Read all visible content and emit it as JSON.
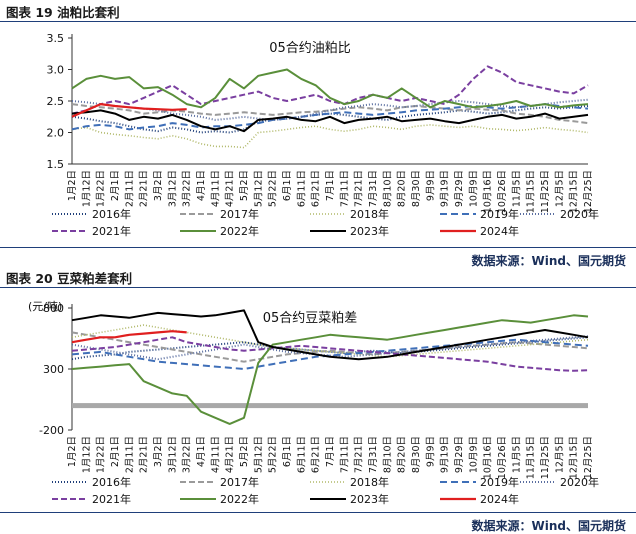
{
  "figures": [
    {
      "label": "图表 19  油粕比套利",
      "source": "数据来源：Wind、国元期货",
      "chart_data": {
        "type": "line",
        "title": "05合约油粕比",
        "ylabel": "",
        "xlabel": "",
        "ylim": [
          1.5,
          3.5
        ],
        "yticks": [
          "1.5",
          "2.0",
          "2.5",
          "3.0",
          "3.5"
        ],
        "categories": [
          "1月2日",
          "1月12日",
          "1月22日",
          "2月1日",
          "2月11日",
          "2月21日",
          "3月2日",
          "3月12日",
          "3月22日",
          "4月1日",
          "4月11日",
          "4月21日",
          "5月2日",
          "5月12日",
          "5月22日",
          "6月1日",
          "6月11日",
          "6月21日",
          "7月1日",
          "7月11日",
          "7月21日",
          "7月31日",
          "8月10日",
          "8月20日",
          "8月30日",
          "9月9日",
          "9月19日",
          "9月29日",
          "10月9日",
          "10月16日",
          "10月26日",
          "11月5日",
          "11月15日",
          "11月25日",
          "12月5日",
          "12月15日",
          "12月25日"
        ],
        "legend_position": "bottom",
        "series": [
          {
            "name": "2016年",
            "color": "#1f3f7a",
            "dash": "1,2",
            "width": 2,
            "values": [
              2.25,
              2.22,
              2.18,
              2.15,
              2.1,
              2.05,
              2.02,
              2.08,
              2.05,
              2.0,
              2.02,
              2.0,
              2.05,
              2.18,
              2.2,
              2.22,
              2.25,
              2.28,
              2.3,
              2.28,
              2.25,
              2.22,
              2.2,
              2.25,
              2.28,
              2.3,
              2.32,
              2.35,
              2.33,
              2.3,
              2.32,
              2.35,
              2.38,
              2.4,
              2.38,
              2.4,
              2.42
            ]
          },
          {
            "name": "2017年",
            "color": "#9a9a9a",
            "dash": "6,3",
            "width": 2,
            "values": [
              2.45,
              2.42,
              2.4,
              2.38,
              2.35,
              2.3,
              2.32,
              2.35,
              2.33,
              2.3,
              2.28,
              2.3,
              2.32,
              2.3,
              2.28,
              2.3,
              2.32,
              2.33,
              2.35,
              2.38,
              2.4,
              2.38,
              2.35,
              2.4,
              2.42,
              2.4,
              2.38,
              2.35,
              2.38,
              2.36,
              2.35,
              2.3,
              2.28,
              2.25,
              2.2,
              2.18,
              2.15
            ]
          },
          {
            "name": "2018年",
            "color": "#b0b868",
            "dash": "1,2",
            "width": 1.6,
            "values": [
              2.05,
              2.08,
              2.0,
              1.97,
              1.95,
              1.92,
              1.9,
              1.95,
              1.9,
              1.82,
              1.78,
              1.78,
              1.76,
              2.0,
              2.02,
              2.05,
              2.08,
              2.1,
              2.05,
              2.02,
              2.05,
              2.1,
              2.08,
              2.05,
              2.1,
              2.12,
              2.1,
              2.08,
              2.1,
              2.06,
              2.05,
              2.03,
              2.05,
              2.08,
              2.05,
              2.03,
              2.0
            ]
          },
          {
            "name": "2019年",
            "color": "#3f6fb8",
            "dash": "7,4",
            "width": 2,
            "values": [
              2.05,
              2.1,
              2.12,
              2.1,
              2.05,
              2.08,
              2.1,
              2.15,
              2.12,
              2.08,
              2.1,
              2.1,
              2.12,
              2.15,
              2.2,
              2.22,
              2.25,
              2.28,
              2.3,
              2.32,
              2.3,
              2.28,
              2.3,
              2.32,
              2.35,
              2.36,
              2.38,
              2.4,
              2.42,
              2.4,
              2.38,
              2.4,
              2.42,
              2.45,
              2.42,
              2.4,
              2.38
            ]
          },
          {
            "name": "2020年",
            "color": "#5a6ea0",
            "dash": "1,2",
            "width": 2,
            "values": [
              2.5,
              2.48,
              2.45,
              2.42,
              2.4,
              2.38,
              2.35,
              2.3,
              2.28,
              2.25,
              2.2,
              2.22,
              2.25,
              2.22,
              2.2,
              2.22,
              2.25,
              2.3,
              2.35,
              2.4,
              2.42,
              2.45,
              2.43,
              2.4,
              2.42,
              2.45,
              2.48,
              2.5,
              2.48,
              2.45,
              2.42,
              2.4,
              2.42,
              2.45,
              2.48,
              2.5,
              2.52
            ]
          },
          {
            "name": "2021年",
            "color": "#7a3fa0",
            "dash": "6,3",
            "width": 2,
            "values": [
              2.3,
              2.35,
              2.45,
              2.5,
              2.45,
              2.55,
              2.65,
              2.75,
              2.6,
              2.45,
              2.5,
              2.55,
              2.6,
              2.65,
              2.55,
              2.5,
              2.55,
              2.6,
              2.5,
              2.45,
              2.55,
              2.6,
              2.55,
              2.5,
              2.55,
              2.5,
              2.45,
              2.6,
              2.85,
              3.05,
              2.95,
              2.8,
              2.75,
              2.7,
              2.65,
              2.62,
              2.75
            ]
          },
          {
            "name": "2022年",
            "color": "#5a8f3a",
            "dash": "",
            "width": 2,
            "values": [
              2.7,
              2.85,
              2.9,
              2.85,
              2.88,
              2.7,
              2.72,
              2.6,
              2.45,
              2.4,
              2.55,
              2.85,
              2.7,
              2.9,
              2.95,
              3.0,
              2.85,
              2.75,
              2.55,
              2.45,
              2.5,
              2.6,
              2.55,
              2.7,
              2.55,
              2.4,
              2.5,
              2.45,
              2.4,
              2.42,
              2.45,
              2.5,
              2.42,
              2.45,
              2.4,
              2.43,
              2.45
            ]
          },
          {
            "name": "2023年",
            "color": "#000000",
            "dash": "",
            "width": 2,
            "values": [
              2.3,
              2.32,
              2.35,
              2.3,
              2.2,
              2.25,
              2.22,
              2.28,
              2.2,
              2.1,
              2.05,
              2.1,
              2.02,
              2.2,
              2.22,
              2.25,
              2.2,
              2.18,
              2.25,
              2.15,
              2.2,
              2.22,
              2.25,
              2.18,
              2.2,
              2.22,
              2.18,
              2.15,
              2.2,
              2.25,
              2.28,
              2.22,
              2.25,
              2.3,
              2.22,
              2.25,
              2.28
            ]
          },
          {
            "name": "2024年",
            "color": "#e01f1f",
            "dash": "",
            "width": 2.2,
            "values": [
              2.25,
              2.35,
              2.45,
              2.42,
              2.4,
              2.38,
              2.37,
              2.36,
              2.37,
              null,
              null,
              null,
              null,
              null,
              null,
              null,
              null,
              null,
              null,
              null,
              null,
              null,
              null,
              null,
              null,
              null,
              null,
              null,
              null,
              null,
              null,
              null,
              null,
              null,
              null,
              null,
              null
            ]
          }
        ]
      }
    },
    {
      "label": "图表 20  豆菜粕差套利",
      "source": "数据来源：Wind、国元期货",
      "chart_data": {
        "type": "line",
        "title": "05合约豆菜粕差",
        "ylabel": "(元/吨)",
        "xlabel": "",
        "ylim": [
          -200,
          800
        ],
        "yticks": [
          "-200",
          "300",
          "800"
        ],
        "categories": [
          "1月2日",
          "1月12日",
          "1月22日",
          "2月1日",
          "2月11日",
          "2月21日",
          "3月2日",
          "3月12日",
          "3月22日",
          "4月1日",
          "4月11日",
          "4月21日",
          "5月2日",
          "5月12日",
          "5月22日",
          "6月1日",
          "6月11日",
          "6月21日",
          "7月1日",
          "7月11日",
          "7月21日",
          "7月31日",
          "8月10日",
          "8月20日",
          "8月30日",
          "9月9日",
          "9月19日",
          "9月29日",
          "10月9日",
          "10月16日",
          "10月26日",
          "11月5日",
          "11月15日",
          "11月25日",
          "12月5日",
          "12月15日",
          "12月25日"
        ],
        "legend_position": "bottom",
        "series": [
          {
            "name": "2016年",
            "color": "#1f3f7a",
            "dash": "1,2",
            "width": 2,
            "values": [
              380,
              400,
              410,
              420,
              440,
              450,
              460,
              470,
              480,
              490,
              500,
              510,
              520,
              500,
              480,
              470,
              460,
              450,
              440,
              430,
              440,
              450,
              440,
              430,
              440,
              450,
              460,
              470,
              480,
              490,
              500,
              510,
              520,
              530,
              540,
              550,
              560
            ]
          },
          {
            "name": "2017年",
            "color": "#9a9a9a",
            "dash": "6,3",
            "width": 2,
            "values": [
              600,
              580,
              560,
              540,
              520,
              500,
              480,
              460,
              440,
              420,
              400,
              380,
              360,
              380,
              400,
              420,
              430,
              440,
              450,
              440,
              430,
              420,
              430,
              440,
              450,
              460,
              470,
              480,
              490,
              500,
              510,
              520,
              510,
              500,
              490,
              480,
              470
            ]
          },
          {
            "name": "2018年",
            "color": "#b0b868",
            "dash": "1,2",
            "width": 1.6,
            "values": [
              560,
              580,
              600,
              620,
              640,
              660,
              640,
              620,
              600,
              580,
              560,
              540,
              520,
              500,
              480,
              470,
              460,
              450,
              440,
              430,
              420,
              410,
              400,
              410,
              420,
              430,
              440,
              450,
              460,
              470,
              480,
              490,
              500,
              510,
              520,
              530,
              540
            ]
          },
          {
            "name": "2019年",
            "color": "#3f6fb8",
            "dash": "7,4",
            "width": 2,
            "values": [
              420,
              430,
              440,
              420,
              400,
              380,
              360,
              350,
              340,
              330,
              320,
              310,
              300,
              320,
              340,
              360,
              380,
              400,
              410,
              420,
              430,
              440,
              450,
              460,
              470,
              480,
              490,
              500,
              510,
              520,
              530,
              540,
              530,
              520,
              510,
              500,
              490
            ]
          },
          {
            "name": "2020年",
            "color": "#5a6ea0",
            "dash": "1,2",
            "width": 2,
            "values": [
              500,
              480,
              460,
              440,
              420,
              400,
              380,
              400,
              420,
              440,
              460,
              480,
              500,
              480,
              460,
              440,
              430,
              420,
              410,
              400,
              410,
              420,
              430,
              440,
              450,
              460,
              470,
              480,
              490,
              500,
              510,
              520,
              530,
              540,
              550,
              560,
              570
            ]
          },
          {
            "name": "2021年",
            "color": "#7a3fa0",
            "dash": "6,3",
            "width": 2,
            "values": [
              450,
              460,
              470,
              480,
              500,
              520,
              540,
              560,
              520,
              500,
              480,
              460,
              450,
              460,
              470,
              480,
              490,
              480,
              470,
              460,
              450,
              440,
              430,
              420,
              410,
              400,
              390,
              380,
              370,
              360,
              340,
              320,
              310,
              300,
              290,
              285,
              290
            ]
          },
          {
            "name": "2022年",
            "color": "#5a8f3a",
            "dash": "",
            "width": 2,
            "values": [
              300,
              310,
              320,
              330,
              340,
              200,
              150,
              100,
              80,
              -50,
              -100,
              -150,
              -100,
              350,
              500,
              520,
              540,
              560,
              580,
              570,
              560,
              550,
              540,
              560,
              580,
              600,
              620,
              640,
              660,
              680,
              700,
              690,
              680,
              700,
              720,
              740,
              730
            ]
          },
          {
            "name": "2023年",
            "color": "#000000",
            "dash": "",
            "width": 2,
            "values": [
              700,
              720,
              740,
              730,
              720,
              740,
              760,
              750,
              740,
              730,
              740,
              760,
              780,
              520,
              480,
              460,
              440,
              420,
              400,
              390,
              380,
              390,
              400,
              420,
              440,
              460,
              480,
              500,
              520,
              540,
              560,
              580,
              600,
              620,
              600,
              580,
              560
            ]
          },
          {
            "name": "2024年",
            "color": "#e01f1f",
            "dash": "",
            "width": 2.2,
            "values": [
              520,
              540,
              560,
              560,
              580,
              590,
              600,
              610,
              600,
              null,
              null,
              null,
              null,
              null,
              null,
              null,
              null,
              null,
              null,
              null,
              null,
              null,
              null,
              null,
              null,
              null,
              null,
              null,
              null,
              null,
              null,
              null,
              null,
              null,
              null,
              null,
              null
            ]
          }
        ]
      }
    }
  ]
}
